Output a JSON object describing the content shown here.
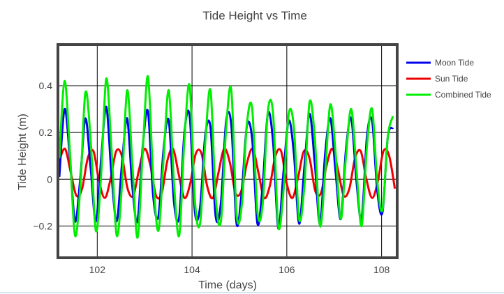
{
  "chart_data": {
    "type": "line",
    "title": "Tide Height vs Time",
    "xlabel": "Time (days)",
    "ylabel": "Tide Height (m)",
    "xlim": [
      101.2,
      108.3
    ],
    "ylim": [
      -0.33,
      0.57
    ],
    "x_ticks": [
      102,
      104,
      106,
      108
    ],
    "x_tick_labels": [
      "102",
      "104",
      "106",
      "108"
    ],
    "y_ticks": [
      -0.2,
      0,
      0.2,
      0.4
    ],
    "y_tick_labels": [
      "−0.2",
      "0",
      "0.2",
      "0.4"
    ],
    "grid": true,
    "legend_position": "right",
    "series": [
      {
        "name": "Moon Tide",
        "color": "#0000ee",
        "x": [
          101.2,
          101.31,
          101.42,
          101.53,
          101.64,
          101.75,
          101.86,
          101.97,
          102.08,
          102.19,
          102.3,
          102.41,
          102.52,
          102.63,
          102.74,
          102.85,
          102.96,
          103.07,
          103.18,
          103.29,
          103.4,
          103.51,
          103.62,
          103.73,
          103.84,
          103.95,
          104.06,
          104.17,
          104.28,
          104.39,
          104.5,
          104.61,
          104.72,
          104.83,
          104.94,
          105.05,
          105.16,
          105.27,
          105.38,
          105.49,
          105.6,
          105.71,
          105.82,
          105.93,
          106.04,
          106.15,
          106.26,
          106.37,
          106.48,
          106.59,
          106.7,
          106.81,
          106.92,
          107.03,
          107.14,
          107.25,
          107.36,
          107.47,
          107.58,
          107.69,
          107.8,
          107.91,
          108.02,
          108.13,
          108.24
        ],
        "y": [
          0.01,
          0.3,
          0.1,
          -0.18,
          0.0,
          0.26,
          0.05,
          -0.18,
          0.08,
          0.31,
          0.02,
          -0.18,
          0.06,
          0.26,
          -0.03,
          -0.18,
          0.14,
          0.29,
          -0.07,
          -0.16,
          0.13,
          0.25,
          -0.1,
          -0.16,
          0.2,
          0.27,
          -0.14,
          -0.12,
          0.19,
          0.22,
          -0.16,
          -0.1,
          0.25,
          0.23,
          -0.19,
          -0.05,
          0.23,
          0.17,
          -0.19,
          -0.03,
          0.28,
          0.16,
          -0.21,
          0.03,
          0.25,
          0.11,
          -0.19,
          0.05,
          0.28,
          0.07,
          -0.19,
          0.11,
          0.26,
          0.03,
          -0.17,
          0.13,
          0.26,
          -0.01,
          -0.17,
          0.18,
          0.25,
          -0.05,
          -0.14,
          0.18,
          0.22
        ]
      },
      {
        "name": "Sun Tide",
        "color": "#ee0000",
        "x": [
          101.2,
          101.32,
          101.44,
          101.56,
          101.68,
          101.8,
          101.92,
          102.04,
          102.16,
          102.28,
          102.4,
          102.52,
          102.64,
          102.76,
          102.88,
          103.0,
          103.12,
          103.24,
          103.36,
          103.48,
          103.6,
          103.72,
          103.84,
          103.96,
          104.08,
          104.2,
          104.32,
          104.44,
          104.56,
          104.68,
          104.8,
          104.92,
          105.04,
          105.16,
          105.28,
          105.4,
          105.52,
          105.64,
          105.76,
          105.88,
          106.0,
          106.12,
          106.24,
          106.36,
          106.48,
          106.6,
          106.72,
          106.84,
          106.96,
          107.08,
          107.2,
          107.32,
          107.44,
          107.56,
          107.68,
          107.8,
          107.92,
          108.04,
          108.16,
          108.28
        ],
        "y": [
          0.08,
          0.13,
          0.03,
          -0.07,
          -0.04,
          0.09,
          0.12,
          -0.01,
          -0.08,
          0.0,
          0.12,
          0.1,
          -0.04,
          -0.07,
          0.04,
          0.13,
          0.06,
          -0.07,
          -0.06,
          0.08,
          0.13,
          0.02,
          -0.08,
          -0.02,
          0.11,
          0.11,
          -0.03,
          -0.08,
          0.03,
          0.13,
          0.07,
          -0.06,
          -0.05,
          0.07,
          0.13,
          0.03,
          -0.08,
          -0.03,
          0.1,
          0.12,
          -0.02,
          -0.08,
          0.01,
          0.12,
          0.09,
          -0.05,
          -0.06,
          0.06,
          0.13,
          0.04,
          -0.07,
          -0.04,
          0.09,
          0.12,
          0.0,
          -0.08,
          -0.01,
          0.12,
          0.1,
          -0.04
        ]
      },
      {
        "name": "Combined Tide",
        "color": "#00ee00",
        "x": [
          101.2,
          101.31,
          101.42,
          101.53,
          101.64,
          101.75,
          101.86,
          101.97,
          102.08,
          102.19,
          102.3,
          102.41,
          102.52,
          102.63,
          102.74,
          102.85,
          102.96,
          103.07,
          103.18,
          103.29,
          103.4,
          103.51,
          103.62,
          103.73,
          103.84,
          103.95,
          104.06,
          104.17,
          104.28,
          104.39,
          104.5,
          104.61,
          104.72,
          104.83,
          104.94,
          105.05,
          105.16,
          105.27,
          105.38,
          105.49,
          105.6,
          105.71,
          105.82,
          105.93,
          106.04,
          106.15,
          106.26,
          106.37,
          106.48,
          106.59,
          106.7,
          106.81,
          106.92,
          107.03,
          107.14,
          107.25,
          107.36,
          107.47,
          107.58,
          107.69,
          107.8,
          107.91,
          108.02,
          108.13,
          108.24
        ],
        "y": [
          0.09,
          0.42,
          0.13,
          -0.24,
          -0.04,
          0.37,
          0.17,
          -0.22,
          0.01,
          0.43,
          0.13,
          -0.24,
          -0.03,
          0.38,
          0.07,
          -0.25,
          0.12,
          0.44,
          0.01,
          -0.22,
          0.09,
          0.38,
          -0.02,
          -0.24,
          0.17,
          0.4,
          -0.09,
          -0.19,
          0.16,
          0.38,
          -0.08,
          -0.18,
          0.22,
          0.38,
          -0.15,
          -0.11,
          0.24,
          0.3,
          -0.14,
          -0.11,
          0.29,
          0.28,
          -0.2,
          -0.05,
          0.28,
          0.22,
          -0.17,
          -0.03,
          0.33,
          0.18,
          -0.2,
          0.03,
          0.32,
          0.11,
          -0.17,
          0.1,
          0.3,
          0.04,
          -0.2,
          0.14,
          0.3,
          -0.01,
          -0.13,
          0.18,
          0.27
        ]
      }
    ]
  }
}
